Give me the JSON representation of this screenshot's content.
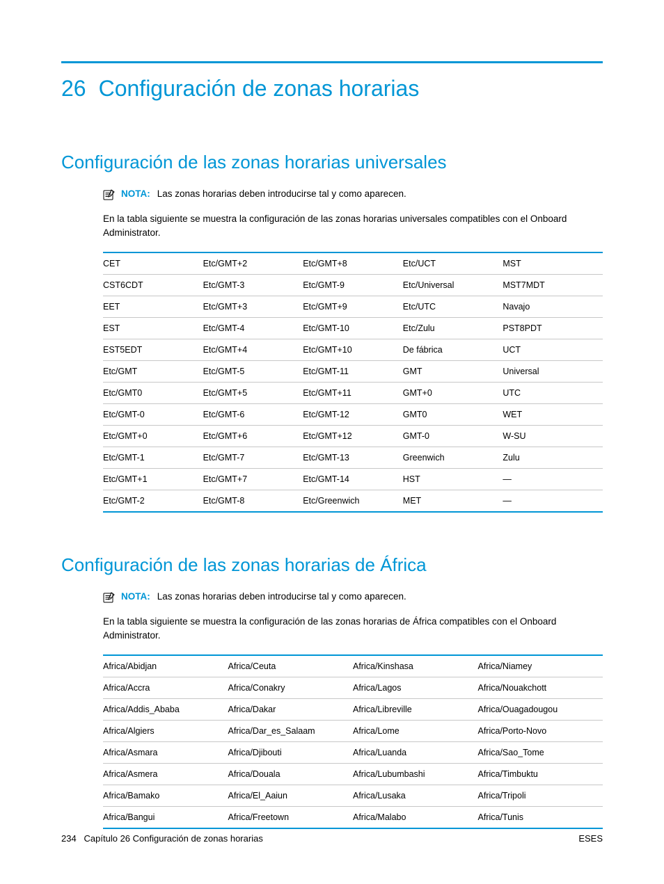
{
  "colors": {
    "accent": "#0096d6",
    "text": "#000000",
    "row_border": "#c7c7c7",
    "background": "#ffffff"
  },
  "typography": {
    "body_family": "Arial",
    "chapter_title_pt": 32,
    "section_title_pt": 26,
    "body_pt": 13.5,
    "table_pt": 12.5,
    "footer_pt": 13
  },
  "chapter": {
    "number": "26",
    "title": "Configuración de zonas horarias"
  },
  "section1": {
    "title": "Configuración de las zonas horarias universales",
    "note_label": "NOTA:",
    "note_text": "Las zonas horarias deben introducirse tal y como aparecen.",
    "intro": "En la tabla siguiente se muestra la configuración de las zonas horarias universales compatibles con el Onboard Administrator.",
    "table": {
      "type": "table",
      "columns": 5,
      "col_widths_pct": [
        20,
        20,
        20,
        20,
        20
      ],
      "border_top_color": "#0096d6",
      "border_bottom_color": "#0096d6",
      "row_divider_color": "#c7c7c7",
      "rows": [
        [
          "CET",
          "Etc/GMT+2",
          "Etc/GMT+8",
          "Etc/UCT",
          "MST"
        ],
        [
          "CST6CDT",
          "Etc/GMT-3",
          "Etc/GMT-9",
          "Etc/Universal",
          "MST7MDT"
        ],
        [
          "EET",
          "Etc/GMT+3",
          "Etc/GMT+9",
          "Etc/UTC",
          "Navajo"
        ],
        [
          "EST",
          "Etc/GMT-4",
          "Etc/GMT-10",
          "Etc/Zulu",
          "PST8PDT"
        ],
        [
          "EST5EDT",
          "Etc/GMT+4",
          "Etc/GMT+10",
          "De fábrica",
          "UCT"
        ],
        [
          "Etc/GMT",
          "Etc/GMT-5",
          "Etc/GMT-11",
          "GMT",
          "Universal"
        ],
        [
          "Etc/GMT0",
          "Etc/GMT+5",
          "Etc/GMT+11",
          "GMT+0",
          "UTC"
        ],
        [
          "Etc/GMT-0",
          "Etc/GMT-6",
          "Etc/GMT-12",
          "GMT0",
          "WET"
        ],
        [
          "Etc/GMT+0",
          "Etc/GMT+6",
          "Etc/GMT+12",
          "GMT-0",
          "W-SU"
        ],
        [
          "Etc/GMT-1",
          "Etc/GMT-7",
          "Etc/GMT-13",
          "Greenwich",
          "Zulu"
        ],
        [
          "Etc/GMT+1",
          "Etc/GMT+7",
          "Etc/GMT-14",
          "HST",
          "—"
        ],
        [
          "Etc/GMT-2",
          "Etc/GMT-8",
          "Etc/Greenwich",
          "MET",
          "—"
        ]
      ]
    }
  },
  "section2": {
    "title": "Configuración de las zonas horarias de África",
    "note_label": "NOTA:",
    "note_text": "Las zonas horarias deben introducirse tal y como aparecen.",
    "intro": "En la tabla siguiente se muestra la configuración de las zonas horarias de África compatibles con el Onboard Administrator.",
    "table": {
      "type": "table",
      "columns": 4,
      "col_widths_pct": [
        25,
        25,
        25,
        25
      ],
      "border_top_color": "#0096d6",
      "border_bottom_color": "#0096d6",
      "row_divider_color": "#c7c7c7",
      "rows": [
        [
          "Africa/Abidjan",
          "Africa/Ceuta",
          "Africa/Kinshasa",
          "Africa/Niamey"
        ],
        [
          "Africa/Accra",
          "Africa/Conakry",
          "Africa/Lagos",
          "Africa/Nouakchott"
        ],
        [
          "Africa/Addis_Ababa",
          "Africa/Dakar",
          "Africa/Libreville",
          "Africa/Ouagadougou"
        ],
        [
          "Africa/Algiers",
          "Africa/Dar_es_Salaam",
          "Africa/Lome",
          "Africa/Porto-Novo"
        ],
        [
          "Africa/Asmara",
          "Africa/Djibouti",
          "Africa/Luanda",
          "Africa/Sao_Tome"
        ],
        [
          "Africa/Asmera",
          "Africa/Douala",
          "Africa/Lubumbashi",
          "Africa/Timbuktu"
        ],
        [
          "Africa/Bamako",
          "Africa/El_Aaiun",
          "Africa/Lusaka",
          "Africa/Tripoli"
        ],
        [
          "Africa/Bangui",
          "Africa/Freetown",
          "Africa/Malabo",
          "Africa/Tunis"
        ]
      ]
    }
  },
  "footer": {
    "page_number": "234",
    "left_text": "Capítulo 26   Configuración de zonas horarias",
    "right_text": "ESES"
  }
}
